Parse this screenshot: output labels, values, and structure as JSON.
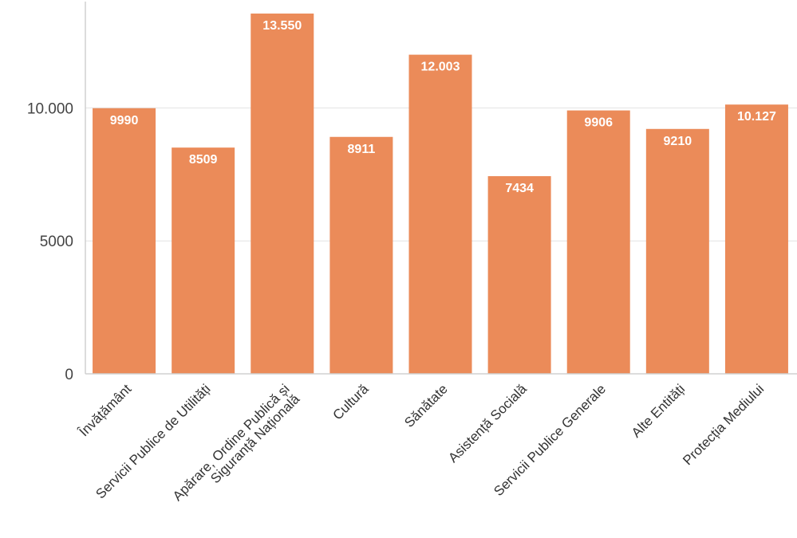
{
  "chart_data": {
    "type": "bar",
    "title": "",
    "xlabel": "",
    "ylabel": "",
    "categories": [
      [
        "Învățământ"
      ],
      [
        "Servicii Publice de Utilități"
      ],
      [
        "Apărare, Ordine Publică și",
        "Siguranță Națională"
      ],
      [
        "Cultură"
      ],
      [
        "Sănătate"
      ],
      [
        "Asistență Socială"
      ],
      [
        "Servicii Publice Generale"
      ],
      [
        "Alte Entități"
      ],
      [
        "Protecția Mediului"
      ]
    ],
    "values": [
      9990,
      8509,
      13550,
      8911,
      12003,
      7434,
      9906,
      9210,
      10127
    ],
    "value_labels": [
      "9990",
      "8509",
      "13.550",
      "8911",
      "12.003",
      "7434",
      "9906",
      "9210",
      "10.127"
    ],
    "yticks": [
      0,
      5000,
      10000
    ],
    "ytick_labels": [
      "0",
      "5000",
      "10.000"
    ],
    "ylim": [
      0,
      13850
    ],
    "grid": true,
    "legend": "none",
    "bar_color": "#eb8b59"
  }
}
